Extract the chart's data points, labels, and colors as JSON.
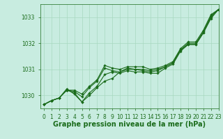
{
  "xlabel": "Graphe pression niveau de la mer (hPa)",
  "ylim": [
    1029.5,
    1033.5
  ],
  "xlim": [
    -0.5,
    23
  ],
  "yticks": [
    1030,
    1031,
    1032,
    1033
  ],
  "xticks": [
    0,
    1,
    2,
    3,
    4,
    5,
    6,
    7,
    8,
    9,
    10,
    11,
    12,
    13,
    14,
    15,
    16,
    17,
    18,
    19,
    20,
    21,
    22,
    23
  ],
  "bg_color": "#c8ece0",
  "grid_color": "#a8d8c0",
  "line_color": "#1a6b1a",
  "series": [
    [
      1029.65,
      1029.8,
      1029.9,
      1030.2,
      1030.1,
      1029.75,
      1030.1,
      1030.35,
      1030.8,
      1030.9,
      1030.85,
      1030.95,
      1030.9,
      1030.9,
      1030.85,
      1030.85,
      1031.05,
      1031.2,
      1031.7,
      1031.95,
      1031.95,
      1032.4,
      1033.0,
      1033.3
    ],
    [
      1029.65,
      1029.8,
      1029.9,
      1030.2,
      1030.15,
      1029.95,
      1030.3,
      1030.55,
      1031.05,
      1030.95,
      1030.9,
      1031.05,
      1031.0,
      1031.0,
      1030.95,
      1031.0,
      1031.1,
      1031.25,
      1031.75,
      1032.0,
      1032.0,
      1032.45,
      1033.05,
      1033.3
    ],
    [
      1029.65,
      1029.8,
      1029.9,
      1030.2,
      1030.2,
      1030.05,
      1030.35,
      1030.6,
      1031.15,
      1031.05,
      1031.0,
      1031.1,
      1031.1,
      1031.1,
      1031.0,
      1031.05,
      1031.15,
      1031.3,
      1031.8,
      1032.05,
      1032.05,
      1032.5,
      1033.1,
      1033.3
    ],
    [
      1029.65,
      1029.8,
      1029.9,
      1030.25,
      1030.05,
      1029.75,
      1030.0,
      1030.3,
      1030.55,
      1030.65,
      1030.9,
      1031.0,
      1031.0,
      1030.95,
      1030.9,
      1030.95,
      1031.1,
      1031.25,
      1031.75,
      1031.95,
      1031.95,
      1032.4,
      1032.95,
      1033.3
    ]
  ],
  "marker": "D",
  "marker_size": 1.8,
  "line_width": 0.8,
  "font_color": "#1a6b1a",
  "tick_font_size": 5.5,
  "xlabel_font_size": 7.0
}
